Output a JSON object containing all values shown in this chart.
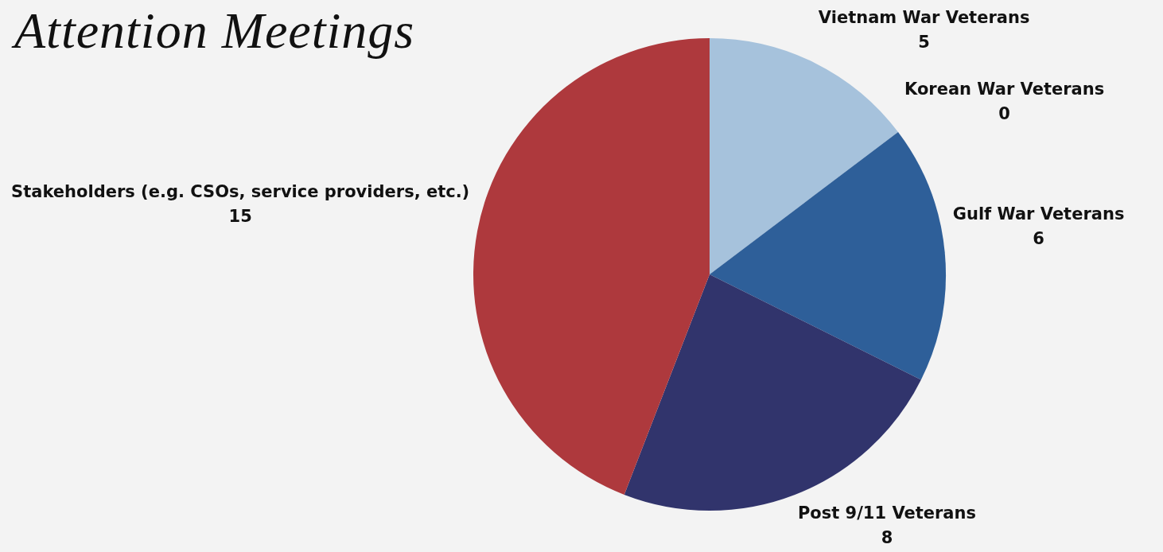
{
  "chart_data": {
    "type": "pie",
    "title": "Attention Meetings",
    "categories": [
      "Vietnam War Veterans",
      "Korean War Veterans",
      "Gulf War Veterans",
      "Post 9/11 Veterans",
      "Stakeholders (e.g. CSOs, service providers, etc.)"
    ],
    "values": [
      5,
      0,
      6,
      8,
      15
    ],
    "colors": [
      "#a6c2dc",
      "#5b7fb0",
      "#2e5f99",
      "#31346c",
      "#ae393d"
    ],
    "value_labels": [
      "5",
      "0",
      "6",
      "8",
      "15"
    ],
    "legend": false
  }
}
